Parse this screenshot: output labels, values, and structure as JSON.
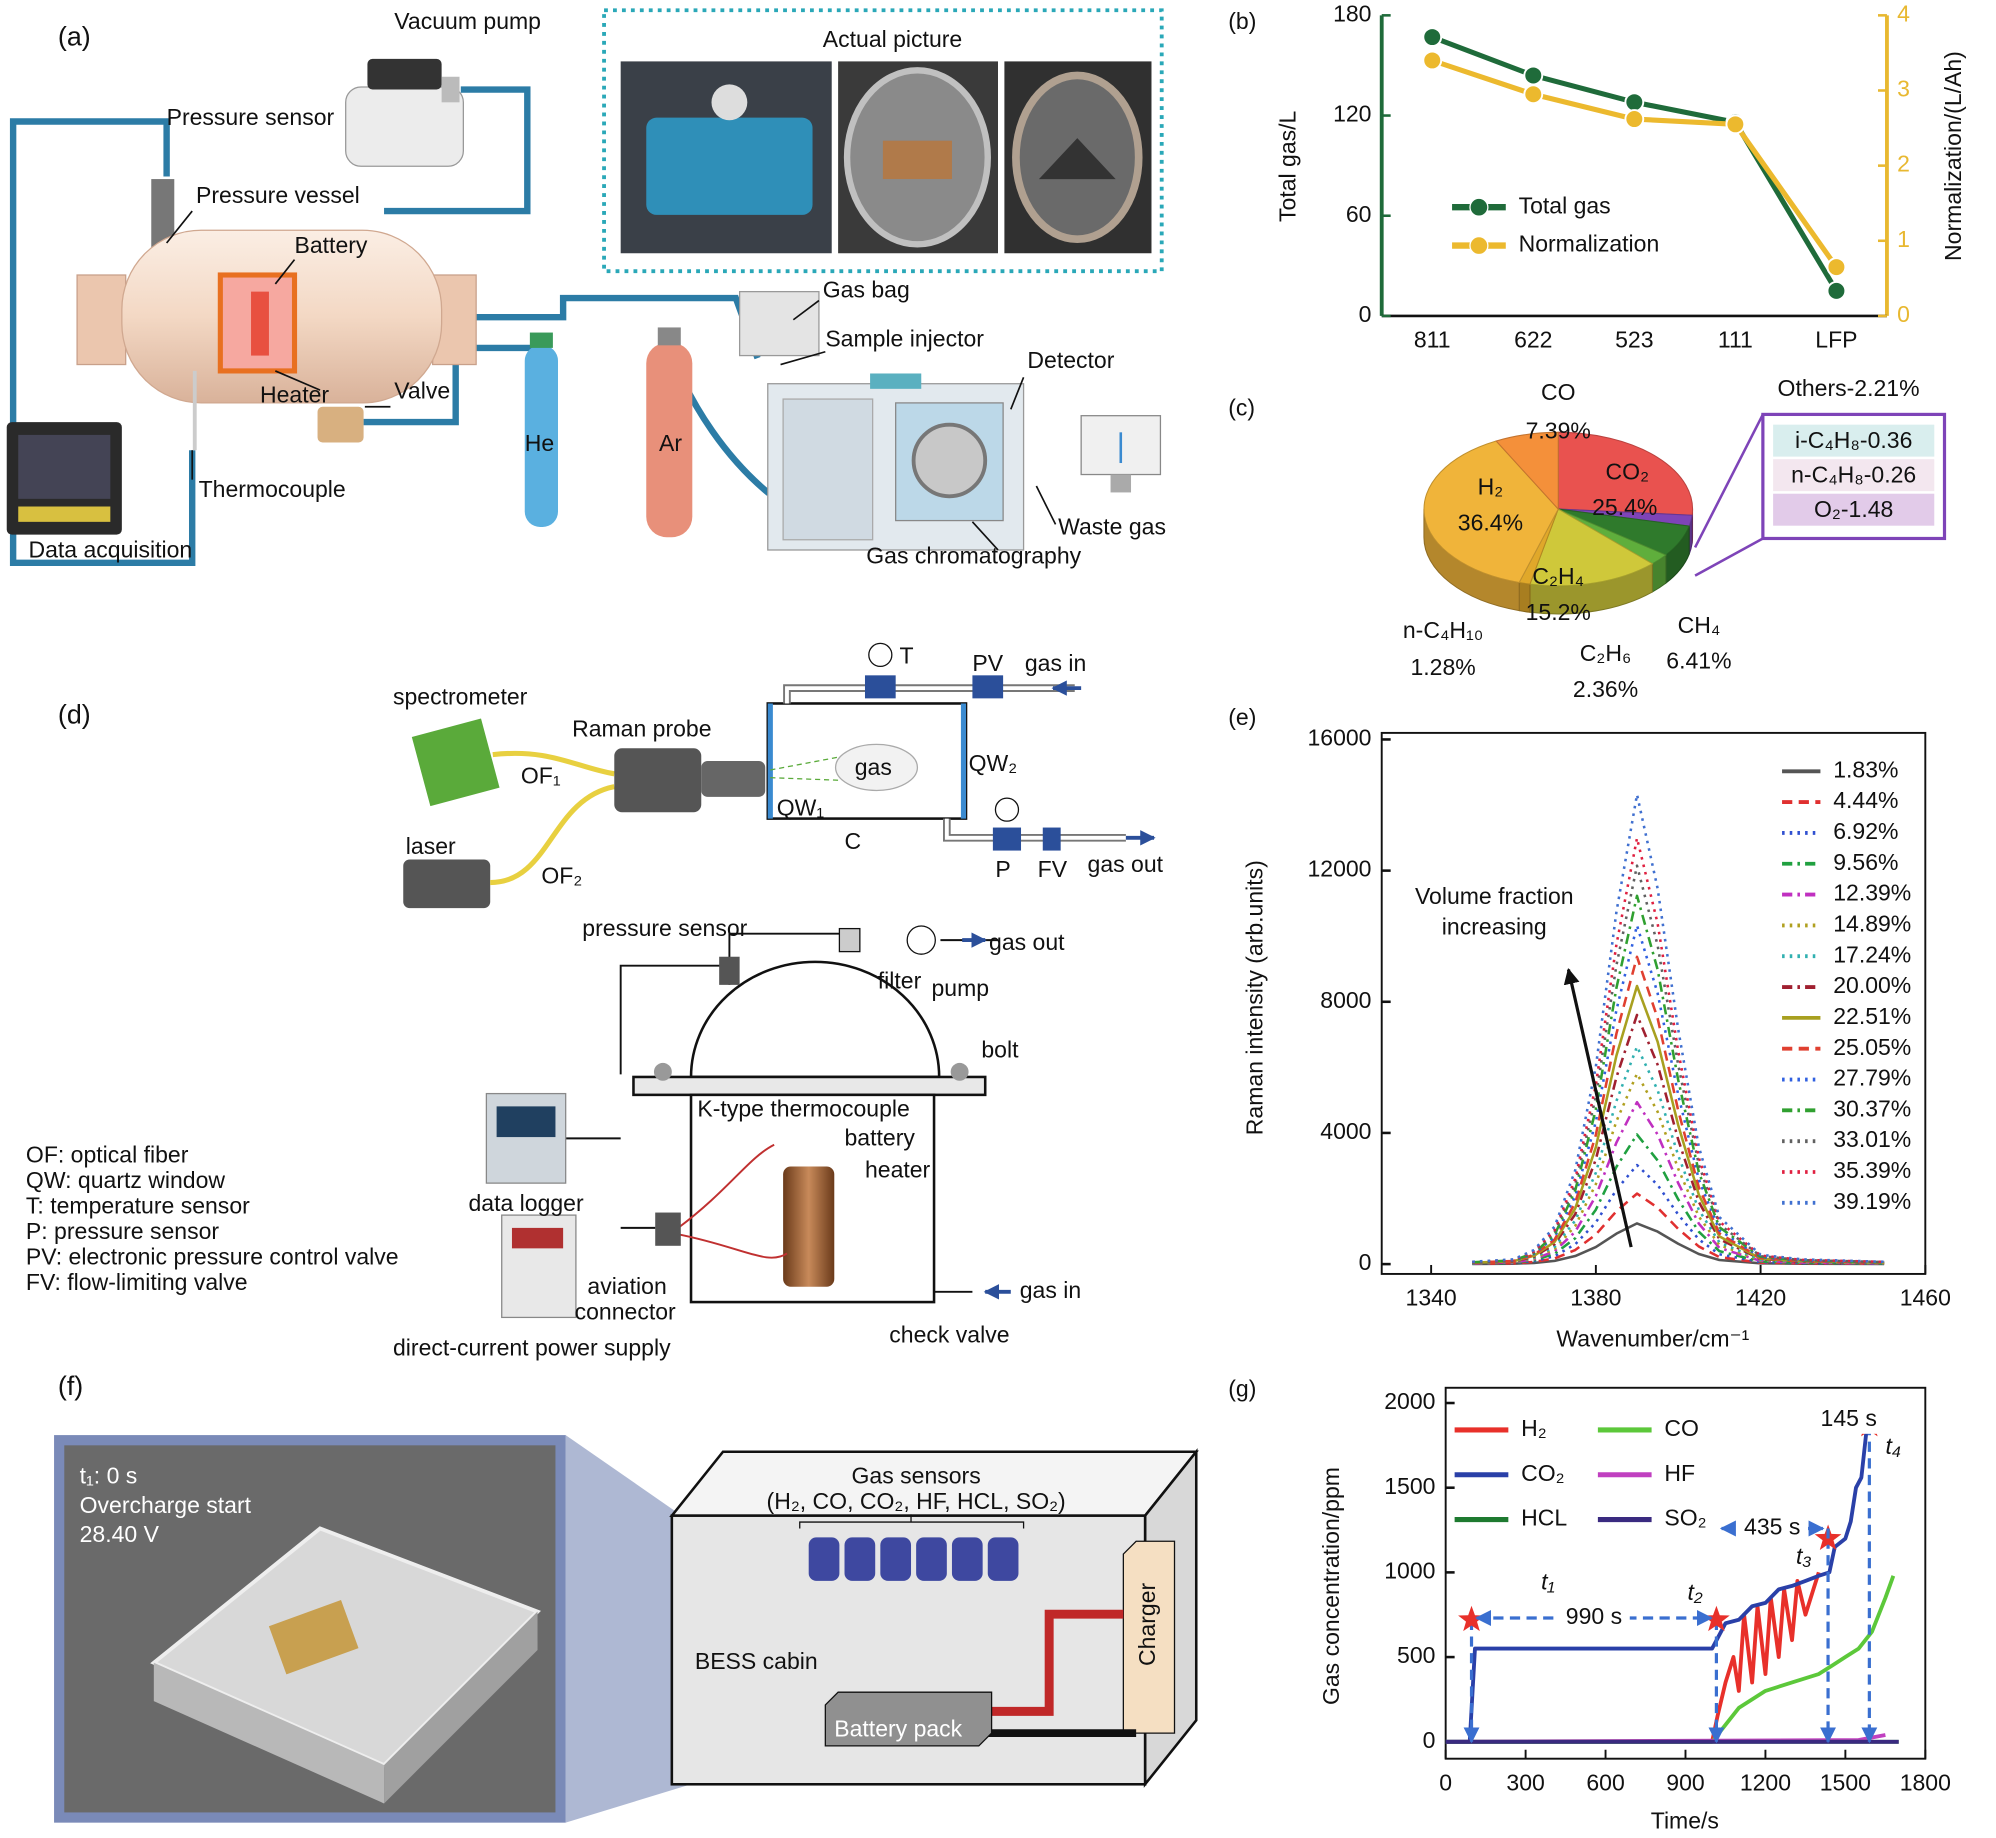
{
  "panel_a": {
    "label": "(a)",
    "vacuum_pump": "Vacuum pump",
    "pressure_sensor": "Pressure sensor",
    "pressure_vessel": "Pressure vessel",
    "battery": "Battery",
    "heater": "Heater",
    "valve": "Valve",
    "he": "He",
    "ar": "Ar",
    "thermocouple": "Thermocouple",
    "data_acquisition": "Data acquisition",
    "actual_picture": "Actual picture",
    "gas_bag": "Gas bag",
    "sample_injector": "Sample injector",
    "detector": "Detector",
    "waste_gas": "Waste gas",
    "gas_chromatography": "Gas chromatography"
  },
  "panel_d": {
    "label": "(d)",
    "spectrometer": "spectrometer",
    "raman_probe": "Raman probe",
    "of1": "OF₁",
    "of2": "OF₂",
    "laser": "laser",
    "gas": "gas",
    "qw1": "QW₁",
    "qw2": "QW₂",
    "c": "C",
    "t": "T",
    "pv": "PV",
    "gas_in_top": "gas in",
    "p": "P",
    "fv": "FV",
    "gas_out_top": "gas out",
    "pressure_sensor": "pressure sensor",
    "filter": "filter",
    "pump": "pump",
    "gas_out": "gas out",
    "bolt": "bolt",
    "thermocouple": "K-type thermocouple",
    "battery": "battery",
    "heater": "heater",
    "data_logger": "data logger",
    "aviation": "aviation",
    "connector": "connector",
    "power_supply": "direct-current power supply",
    "check_valve": "check valve",
    "gas_in": "gas in",
    "legend": [
      "OF: optical fiber",
      "QW: quartz window",
      "T: temperature sensor",
      "P: pressure sensor",
      "PV: electronic pressure control valve",
      "FV: flow-limiting valve"
    ]
  },
  "panel_f": {
    "label": "(f)",
    "photo_time": "t₁: 0 s",
    "photo_event": "Overcharge start",
    "photo_voltage": "28.40 V",
    "gas_sensors": "Gas sensors",
    "gas_list": "(H₂, CO, CO₂, HF, HCL, SO₂)",
    "cabin": "BESS cabin",
    "battery_pack": "Battery pack",
    "charger": "Charger"
  },
  "chart_data": [
    {
      "type": "line",
      "label": "(b)",
      "categories": [
        "811",
        "622",
        "523",
        "111",
        "LFP"
      ],
      "ylabel": "Total gas/L",
      "y2label": "Normalization/(L/Ah)",
      "ylim": [
        0,
        180
      ],
      "yticks": [
        0,
        60,
        120,
        180
      ],
      "y2lim": [
        0,
        4
      ],
      "y2ticks": [
        0,
        1,
        2,
        3,
        4
      ],
      "axis_color": "#1f6b3a",
      "y2_axis_color": "#e8b830",
      "markers": true,
      "series": [
        {
          "name": "Total gas",
          "color": "#1f6b3a",
          "values": [
            167,
            144,
            128,
            116,
            15
          ]
        },
        {
          "name": "Normalization",
          "color": "#ecb92e",
          "axis": "y2",
          "values": [
            3.4,
            2.95,
            2.62,
            2.55,
            0.65
          ]
        }
      ]
    },
    {
      "type": "pie",
      "label": "(c)",
      "categories": [
        "CO₂",
        null,
        "CH₄",
        "C₂H₆",
        "C₂H₄",
        "n-C₄H₁₀",
        "H₂",
        "CO"
      ],
      "values": [
        25.4,
        2.21,
        6.41,
        2.36,
        15.2,
        1.28,
        36.4,
        7.39
      ],
      "value_labels": [
        "25.4%",
        "Others-2.21%",
        "6.41%",
        "2.36%",
        "15.2%",
        "1.28%",
        "36.4%",
        "7.39%"
      ],
      "colors": [
        "#e9524f",
        "#7e44b8",
        "#2f7a2c",
        "#5fae3c",
        "#cfc83a",
        "#e0a82a",
        "#f0b43a",
        "#f4903a"
      ],
      "breakdown": {
        "labels": [
          "i-C₄H₈-0.36",
          "n-C₄H₈-0.26",
          "O₂-1.48"
        ],
        "values": [
          0.36,
          0.26,
          1.48
        ],
        "colors": [
          "#d9eeee",
          "#f3e7ef",
          "#e2cbe9"
        ]
      }
    },
    {
      "type": "line",
      "label": "(e)",
      "frame": true,
      "xlabel": "Wavenumber/cm⁻¹",
      "ylabel": "Raman intensity (arb.units)",
      "annotation": [
        "Volume fraction",
        "increasing"
      ],
      "xlim": [
        1328,
        1460
      ],
      "xticks": [
        1340,
        1380,
        1420,
        1460
      ],
      "ylim": [
        -300,
        16200
      ],
      "yticks": [
        0,
        4000,
        8000,
        12000,
        16000
      ],
      "x": [
        1350,
        1360,
        1365,
        1370,
        1375,
        1380,
        1385,
        1390,
        1395,
        1400,
        1405,
        1410,
        1420,
        1430,
        1450
      ],
      "series": [
        {
          "name": "1.83%",
          "color": "#555555",
          "style": "solid",
          "values": [
            6,
            12,
            37,
            99,
            248,
            521,
            930,
            1240,
            992,
            620,
            310,
            124,
            25,
            12,
            6
          ]
        },
        {
          "name": "4.44%",
          "color": "#e03030",
          "style": "dashed",
          "values": [
            11,
            22,
            65,
            172,
            430,
            903,
            1613,
            2150,
            1720,
            1075,
            538,
            215,
            43,
            22,
            11
          ]
        },
        {
          "name": "6.92%",
          "color": "#3050d0",
          "style": "dotted",
          "values": [
            15,
            30,
            91,
            242,
            604,
            1268,
            2265,
            3020,
            2416,
            1510,
            755,
            302,
            60,
            30,
            15
          ]
        },
        {
          "name": "9.56%",
          "color": "#20a040",
          "style": "dashdot",
          "values": [
            20,
            40,
            119,
            316,
            790,
            1659,
            2963,
            3950,
            3160,
            1975,
            988,
            395,
            79,
            40,
            20
          ]
        },
        {
          "name": "12.39%",
          "color": "#c030c0",
          "style": "dashdot",
          "values": [
            25,
            49,
            148,
            395,
            988,
            2075,
            3705,
            4940,
            3952,
            2470,
            1235,
            494,
            99,
            49,
            25
          ]
        },
        {
          "name": "14.89%",
          "color": "#b0a020",
          "style": "dotted",
          "values": [
            29,
            58,
            174,
            465,
            1162,
            2440,
            4358,
            5810,
            4648,
            2905,
            1453,
            581,
            116,
            58,
            29
          ]
        },
        {
          "name": "17.24%",
          "color": "#30b0b0",
          "style": "dotted",
          "values": [
            33,
            66,
            199,
            530,
            1326,
            2785,
            4973,
            6630,
            5304,
            3315,
            1658,
            663,
            133,
            66,
            33
          ]
        },
        {
          "name": "20.00%",
          "color": "#a02030",
          "style": "dashdot",
          "values": [
            38,
            76,
            228,
            608,
            1520,
            3192,
            5700,
            7600,
            6080,
            3800,
            1900,
            760,
            152,
            76,
            38
          ]
        },
        {
          "name": "22.51%",
          "color": "#a8a020",
          "style": "solid",
          "values": [
            42,
            85,
            254,
            678,
            1696,
            3562,
            6360,
            8480,
            6784,
            4240,
            2120,
            848,
            170,
            85,
            42
          ]
        },
        {
          "name": "25.05%",
          "color": "#e04030",
          "style": "dashed",
          "values": [
            47,
            94,
            281,
            750,
            1874,
            3935,
            7028,
            9370,
            7496,
            4685,
            2343,
            937,
            187,
            94,
            47
          ]
        },
        {
          "name": "27.79%",
          "color": "#3060e0",
          "style": "dotted",
          "values": [
            52,
            103,
            310,
            826,
            2066,
            4339,
            7748,
            10330,
            8264,
            5165,
            2583,
            1033,
            207,
            103,
            52
          ]
        },
        {
          "name": "30.37%",
          "color": "#30a030",
          "style": "dashdot",
          "values": [
            56,
            112,
            337,
            898,
            2246,
            4717,
            8423,
            11230,
            8984,
            5615,
            2808,
            1123,
            225,
            112,
            56
          ]
        },
        {
          "name": "33.01%",
          "color": "#606060",
          "style": "dotted",
          "values": [
            61,
            122,
            365,
            972,
            2430,
            5103,
            9113,
            12150,
            9720,
            6075,
            3038,
            1215,
            243,
            122,
            61
          ]
        },
        {
          "name": "35.39%",
          "color": "#e02040",
          "style": "dotted",
          "values": [
            65,
            130,
            390,
            1039,
            2598,
            5456,
            9743,
            12990,
            10392,
            6495,
            3248,
            1299,
            260,
            130,
            65
          ]
        },
        {
          "name": "39.19%",
          "color": "#4070d0",
          "style": "dotted",
          "values": [
            72,
            143,
            430,
            1146,
            2864,
            6014,
            10740,
            14320,
            11456,
            7160,
            3580,
            1432,
            286,
            143,
            72
          ]
        }
      ]
    },
    {
      "type": "line",
      "label": "(g)",
      "frame": true,
      "xlabel": "Time/s",
      "ylabel": "Gas concentration/ppm",
      "xlim": [
        0,
        1800
      ],
      "xticks": [
        0,
        300,
        600,
        900,
        1200,
        1500,
        1800
      ],
      "ylim": [
        -100,
        2090
      ],
      "yticks": [
        0,
        500,
        1000,
        1500,
        2000
      ],
      "series": [
        {
          "name": "H₂",
          "color": "#e8302a",
          "x": [
            1000,
            1020,
            1050,
            1080,
            1100,
            1120,
            1150,
            1170,
            1200,
            1220,
            1250,
            1270,
            1300,
            1320,
            1350,
            1380,
            1400
          ],
          "values": [
            0,
            150,
            350,
            500,
            300,
            750,
            350,
            800,
            400,
            850,
            500,
            900,
            600,
            950,
            750,
            900,
            1000
          ]
        },
        {
          "name": "CO",
          "color": "#5cc83a",
          "x": [
            0,
            1000,
            1100,
            1200,
            1300,
            1400,
            1450,
            1500,
            1550,
            1600,
            1650,
            1680
          ],
          "values": [
            0,
            0,
            200,
            300,
            350,
            400,
            450,
            500,
            550,
            650,
            850,
            980
          ]
        },
        {
          "name": "CO₂",
          "color": "#2a40a8",
          "x": [
            0,
            90,
            110,
            1000,
            1050,
            1100,
            1150,
            1200,
            1250,
            1300,
            1350,
            1400,
            1440,
            1460,
            1500,
            1520,
            1540,
            1560,
            1580
          ],
          "values": [
            0,
            0,
            550,
            550,
            700,
            720,
            800,
            820,
            900,
            920,
            950,
            980,
            1000,
            1150,
            1200,
            1300,
            1500,
            1560,
            1850
          ]
        },
        {
          "name": "HF",
          "color": "#c040c0",
          "x": [
            0,
            1550,
            1650
          ],
          "values": [
            0,
            10,
            40
          ]
        },
        {
          "name": "HCL",
          "color": "#1e7a30",
          "x": [
            0,
            1700
          ],
          "values": [
            0,
            0
          ]
        },
        {
          "name": "SO₂",
          "color": "#3a2a80",
          "x": [
            0,
            1700
          ],
          "values": [
            0,
            0
          ]
        }
      ],
      "events": [
        {
          "label": "t₁",
          "x": 97,
          "y": 720
        },
        {
          "label": "t₂",
          "x": 1016,
          "y": 720
        },
        {
          "label": "t₃",
          "x": 1435,
          "y": 1200
        },
        {
          "label": "t₄",
          "x": 1590,
          "y": 1870
        }
      ],
      "intervals": [
        "990 s",
        "435 s",
        "145 s"
      ]
    }
  ]
}
